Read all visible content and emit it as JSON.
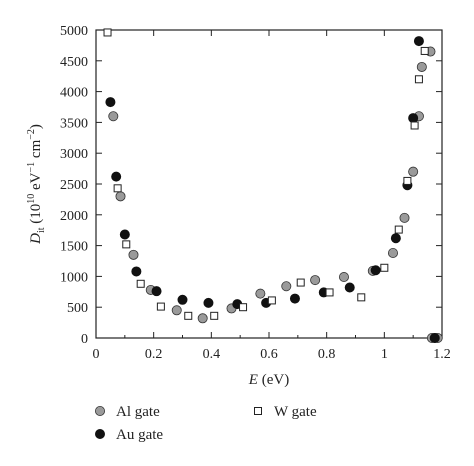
{
  "chart_data": {
    "type": "scatter",
    "title": "",
    "xlabel": {
      "italic": "E",
      "rest": " (eV)"
    },
    "ylabel": {
      "base": "D",
      "sub": "it",
      "unit_open": " (10",
      "unit_exp": "10",
      "unit_mid": " eV",
      "unit_exp2": "−1",
      "unit_mid2": " cm",
      "unit_exp3": "−2",
      "unit_close": ")"
    },
    "xlim": [
      0,
      1.2
    ],
    "ylim": [
      0,
      5000
    ],
    "x_ticks": [
      "0",
      "0.2",
      "0.4",
      "0.6",
      "0.8",
      "1",
      "1.2"
    ],
    "y_ticks": [
      "0",
      "500",
      "1000",
      "1500",
      "2000",
      "2500",
      "3000",
      "3500",
      "4000",
      "4500",
      "5000"
    ],
    "grid": false,
    "legend_position": "bottom",
    "series": [
      {
        "name": "Al gate",
        "marker": "circle",
        "fill": "#9a9a9a",
        "points": [
          [
            0.06,
            3600
          ],
          [
            0.085,
            2300
          ],
          [
            0.13,
            1350
          ],
          [
            0.19,
            780
          ],
          [
            0.28,
            450
          ],
          [
            0.37,
            320
          ],
          [
            0.47,
            480
          ],
          [
            0.57,
            720
          ],
          [
            0.66,
            840
          ],
          [
            0.76,
            940
          ],
          [
            0.86,
            990
          ],
          [
            0.96,
            1090
          ],
          [
            1.03,
            1380
          ],
          [
            1.07,
            1950
          ],
          [
            1.1,
            2700
          ],
          [
            1.12,
            3600
          ],
          [
            1.13,
            4400
          ],
          [
            1.16,
            4650
          ],
          [
            1.165,
            0
          ],
          [
            1.175,
            0
          ],
          [
            1.185,
            0
          ]
        ]
      },
      {
        "name": "Au gate",
        "marker": "filled-circle",
        "fill": "#111111",
        "points": [
          [
            0.05,
            3830
          ],
          [
            0.07,
            2620
          ],
          [
            0.1,
            1680
          ],
          [
            0.14,
            1080
          ],
          [
            0.21,
            760
          ],
          [
            0.3,
            620
          ],
          [
            0.39,
            570
          ],
          [
            0.49,
            550
          ],
          [
            0.59,
            570
          ],
          [
            0.69,
            640
          ],
          [
            0.79,
            740
          ],
          [
            0.88,
            820
          ],
          [
            0.97,
            1100
          ],
          [
            1.04,
            1620
          ],
          [
            1.08,
            2480
          ],
          [
            1.1,
            3570
          ],
          [
            1.12,
            4820
          ],
          [
            1.175,
            0
          ]
        ]
      },
      {
        "name": "W gate",
        "marker": "open-square",
        "fill": "#ffffff",
        "points": [
          [
            0.04,
            4960
          ],
          [
            0.075,
            2430
          ],
          [
            0.105,
            1520
          ],
          [
            0.155,
            880
          ],
          [
            0.225,
            510
          ],
          [
            0.32,
            360
          ],
          [
            0.41,
            360
          ],
          [
            0.51,
            500
          ],
          [
            0.61,
            610
          ],
          [
            0.71,
            900
          ],
          [
            0.81,
            740
          ],
          [
            0.92,
            660
          ],
          [
            1.0,
            1140
          ],
          [
            1.05,
            1760
          ],
          [
            1.08,
            2550
          ],
          [
            1.105,
            3450
          ],
          [
            1.12,
            4200
          ],
          [
            1.14,
            4660
          ]
        ]
      }
    ],
    "legend": [
      {
        "label": "Al gate",
        "marker": "circle"
      },
      {
        "label": "W gate",
        "marker": "open-square"
      },
      {
        "label": "Au gate",
        "marker": "filled-circle"
      }
    ]
  }
}
